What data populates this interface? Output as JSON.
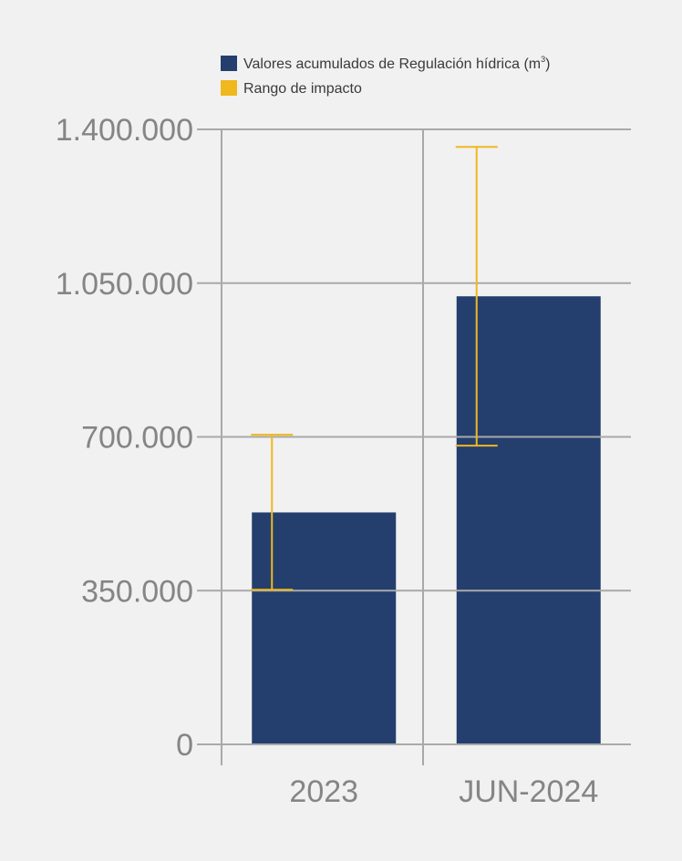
{
  "chart_data": {
    "type": "bar",
    "categories": [
      "2023",
      "JUN-2024"
    ],
    "series": [
      {
        "name": "Valores acumulados de Regulación hídrica (m³)",
        "values": [
          528000,
          1020000
        ],
        "color": "#243f6e"
      }
    ],
    "error_range": {
      "name": "Rango de impacto",
      "low": [
        352000,
        680000
      ],
      "high": [
        705000,
        1360000
      ],
      "color": "#f0b81e"
    },
    "legend": {
      "placement": "top-right",
      "entries": [
        {
          "text": "Valores acumulados de Regulación hídrica (m",
          "superscript": "3",
          "suffix": ")",
          "color": "#243f6e"
        },
        {
          "text": "Rango de impacto",
          "color": "#f0b81e"
        }
      ]
    },
    "y_ticks": [
      {
        "value": 0,
        "label": "0"
      },
      {
        "value": 350000,
        "label": "350.000"
      },
      {
        "value": 700000,
        "label": "700.000"
      },
      {
        "value": 1050000,
        "label": "1.050.000"
      },
      {
        "value": 1400000,
        "label": "1.400.000"
      }
    ],
    "ylim": [
      0,
      1400000
    ],
    "grid": true,
    "title": "",
    "xlabel": "",
    "ylabel": ""
  }
}
